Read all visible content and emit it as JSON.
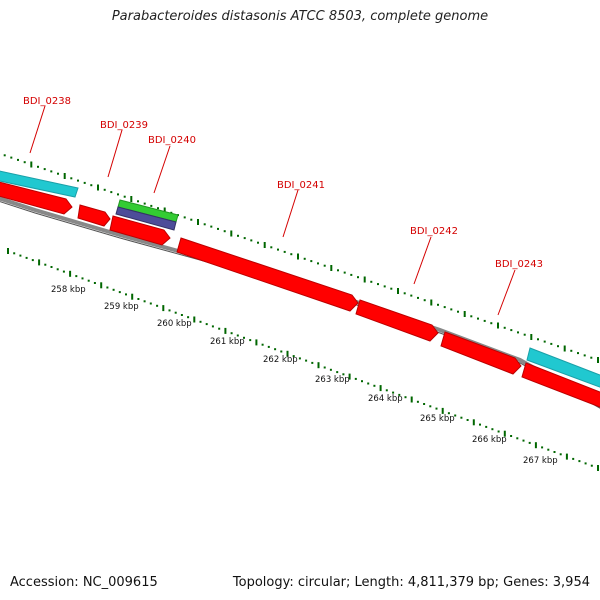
{
  "title": "Parabacteroides distasonis ATCC 8503, complete genome",
  "footer": {
    "accession": "Accession: NC_009615",
    "topology": "Topology: circular; Length: 4,811,379 bp; Genes: 3,954"
  },
  "colors": {
    "gene_fill": "#ff0000",
    "gene_dark": "#cc0000",
    "cyan_feature": "#20c8d0",
    "green_feature": "#33cc33",
    "purple_feature": "#4d4d99",
    "backbone": "#888888",
    "tick_green": "#006600",
    "label_red": "#d40000"
  },
  "genes": [
    {
      "name": "BDI_0238"
    },
    {
      "name": "BDI_0239"
    },
    {
      "name": "BDI_0240"
    },
    {
      "name": "BDI_0241"
    },
    {
      "name": "BDI_0242"
    },
    {
      "name": "BDI_0243"
    }
  ],
  "ticks": [
    "258 kbp",
    "259 kbp",
    "260 kbp",
    "261 kbp",
    "262 kbp",
    "263 kbp",
    "264 kbp",
    "265 kbp",
    "266 kbp",
    "267 kbp"
  ]
}
